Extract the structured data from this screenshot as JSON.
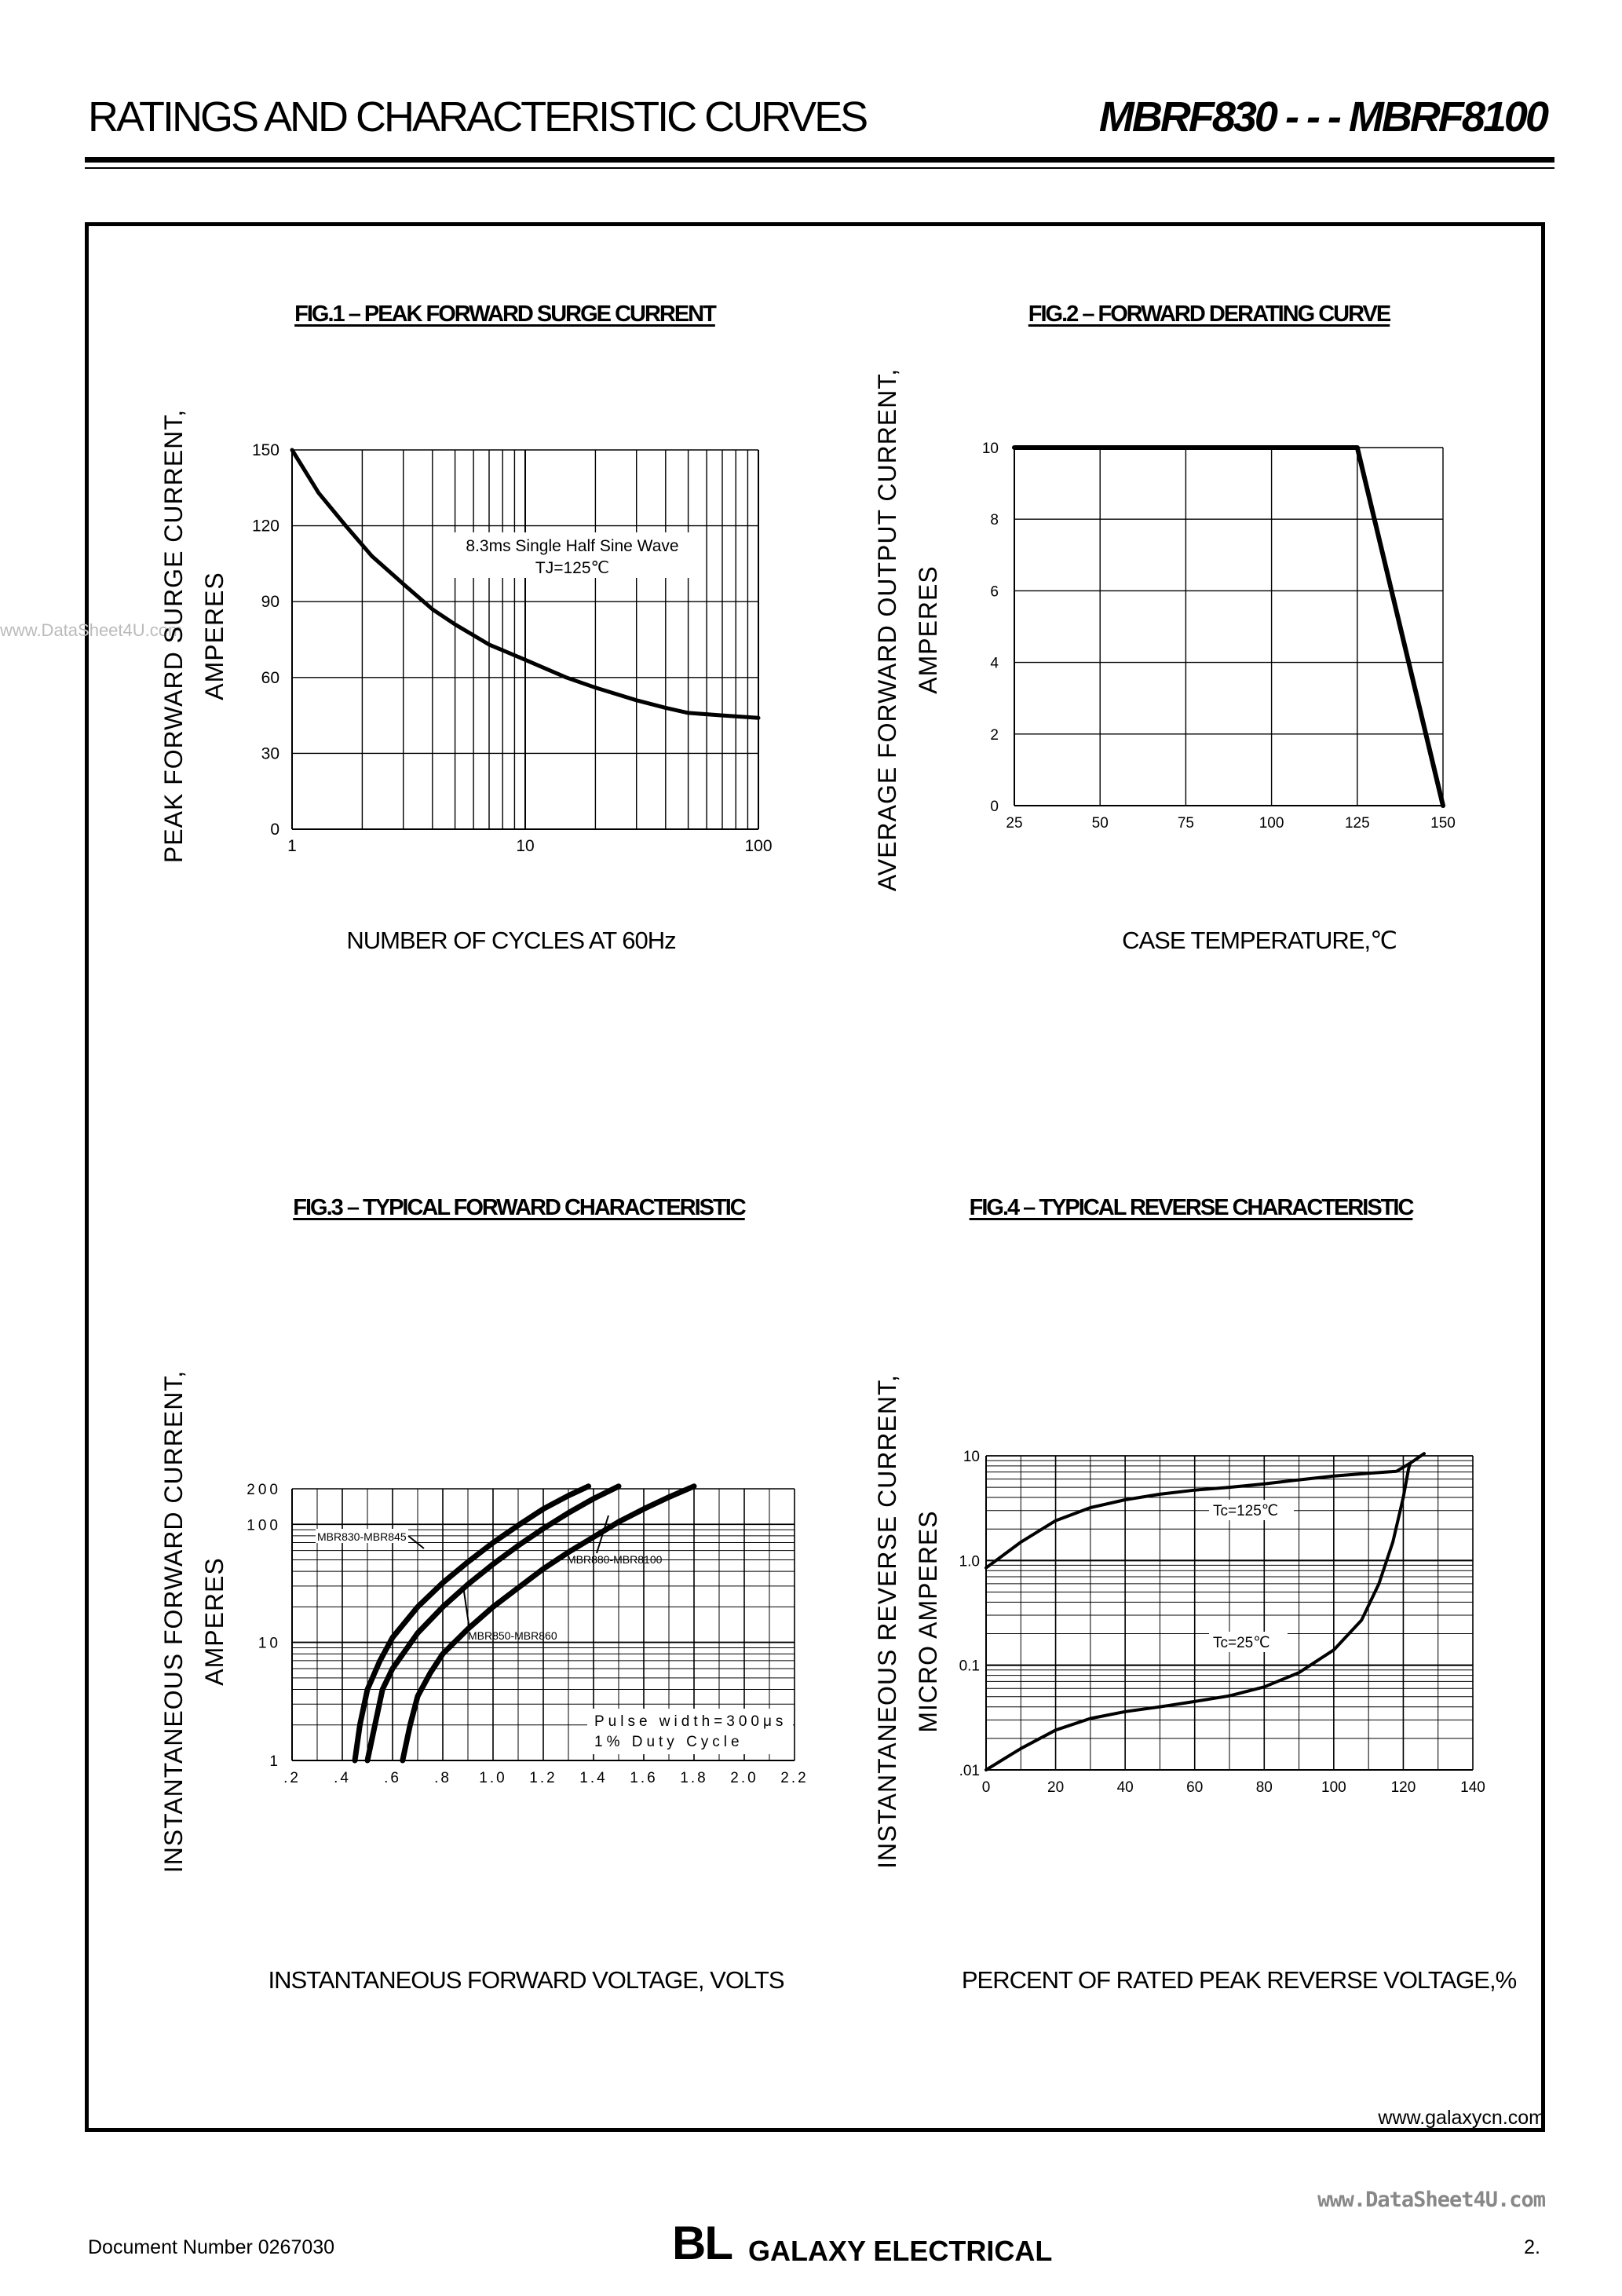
{
  "header": {
    "title": "RATINGS AND CHARACTERISTIC CURVES",
    "part_range": "MBRF830 - - - MBRF8100"
  },
  "footer": {
    "website": "www.galaxycn.com",
    "watermark": "www.DataSheet4U.com",
    "side_watermark": "www.DataSheet4U.com",
    "document_number": "Document  Number  0267030",
    "logo_bl": "BL",
    "logo_text": "GALAXY ELECTRICAL",
    "page_number": "2."
  },
  "colors": {
    "ink": "#000000",
    "grid": "#000000",
    "watermark": "#888888"
  },
  "chart_data": [
    {
      "type": "line",
      "title": "FIG.1 – PEAK FORWARD SURGE CURRENT",
      "xlabel": "NUMBER  OF  CYCLES AT 60Hz",
      "ylabel": [
        "PEAK FORWARD SURGE CURRENT,",
        "AMPERES"
      ],
      "x_scale": "log",
      "xlim": [
        1,
        100
      ],
      "ylim": [
        0,
        150
      ],
      "x_ticks": [
        "1",
        "10",
        "100"
      ],
      "y_ticks": [
        "150",
        "120",
        "90",
        "60",
        "30",
        "0"
      ],
      "grid": true,
      "annotation": [
        "8.3ms Single Half Sine Wave",
        "TJ=125℃"
      ],
      "series": [
        {
          "x": [
            1,
            1.3,
            1.7,
            2.2,
            3,
            4,
            5,
            7,
            10,
            15,
            20,
            30,
            40,
            50,
            70,
            100
          ],
          "y": [
            150,
            133,
            120,
            108,
            97,
            87,
            81,
            73,
            67,
            60,
            56,
            51,
            48,
            46,
            45,
            44
          ]
        }
      ]
    },
    {
      "type": "line",
      "title": "FIG.2 – FORWARD DERATING CURVE",
      "xlabel": "CASE TEMPERATURE,℃",
      "ylabel": [
        "AVERAGE FORWARD OUTPUT CURRENT,",
        "AMPERES"
      ],
      "xlim": [
        25,
        150
      ],
      "ylim": [
        0,
        10
      ],
      "x_ticks": [
        "25",
        "50",
        "75",
        "100",
        "125",
        "150"
      ],
      "y_ticks": [
        "10",
        "8",
        "6",
        "4",
        "2",
        "0"
      ],
      "grid": true,
      "series": [
        {
          "x": [
            25,
            125,
            150
          ],
          "y": [
            10,
            10,
            0
          ]
        }
      ]
    },
    {
      "type": "line",
      "title": "FIG.3 – TYPICAL FORWARD CHARACTERISTIC",
      "xlabel": "INSTANTANEOUS FORWARD VOLTAGE,  VOLTS",
      "ylabel": [
        "INSTANTANEOUS FORWARD CURRENT,",
        "AMPERES"
      ],
      "y_scale": "log",
      "xlim": [
        0.2,
        2.2
      ],
      "ylim": [
        1,
        200
      ],
      "x_ticks": [
        ".2",
        ".4",
        ".6",
        ".8",
        "1.0",
        "1.2",
        "1.4",
        "1.6",
        "1.8",
        "2.0",
        "2.2"
      ],
      "y_ticks": [
        "200",
        "100",
        "10",
        "1"
      ],
      "grid": true,
      "annotation": [
        "Pulse width=300μs",
        "1% Duty Cycle"
      ],
      "series": [
        {
          "name": "MBR830-MBR845",
          "x": [
            0.45,
            0.47,
            0.5,
            0.55,
            0.6,
            0.7,
            0.8,
            0.9,
            1.0,
            1.1,
            1.2,
            1.3,
            1.38
          ],
          "y": [
            1,
            2,
            4,
            7,
            11,
            20,
            32,
            48,
            70,
            98,
            135,
            175,
            210
          ]
        },
        {
          "name": "MBR850-MBR860",
          "x": [
            0.5,
            0.53,
            0.56,
            0.6,
            0.7,
            0.8,
            0.9,
            1.0,
            1.1,
            1.2,
            1.3,
            1.4,
            1.5
          ],
          "y": [
            1,
            2,
            4,
            6,
            12,
            20,
            31,
            46,
            66,
            92,
            125,
            165,
            210
          ]
        },
        {
          "name": "MBR880-MBR8100",
          "x": [
            0.64,
            0.67,
            0.7,
            0.75,
            0.8,
            0.9,
            1.0,
            1.1,
            1.2,
            1.3,
            1.4,
            1.5,
            1.6,
            1.7,
            1.8
          ],
          "y": [
            1,
            2,
            3.5,
            5.5,
            8,
            13,
            20,
            29,
            42,
            58,
            78,
            105,
            135,
            170,
            210
          ]
        }
      ]
    },
    {
      "type": "line",
      "title": "FIG.4 – TYPICAL REVERSE CHARACTERISTIC",
      "xlabel": "PERCENT OF RATED PEAK REVERSE VOLTAGE,%",
      "ylabel": [
        "INSTANTANEOUS REVERSE CURRENT,",
        "MICRO AMPERES"
      ],
      "y_scale": "log",
      "xlim": [
        0,
        140
      ],
      "ylim": [
        0.01,
        10
      ],
      "x_ticks": [
        "0",
        "20",
        "40",
        "60",
        "80",
        "100",
        "120",
        "140"
      ],
      "y_ticks": [
        "10",
        "1.0",
        "0.1",
        ".01"
      ],
      "grid": true,
      "series": [
        {
          "name": "Tc=125℃",
          "x": [
            0,
            10,
            20,
            30,
            40,
            50,
            60,
            70,
            80,
            90,
            100,
            110,
            118,
            122,
            126
          ],
          "y": [
            0.85,
            1.5,
            2.4,
            3.2,
            3.8,
            4.3,
            4.7,
            5.0,
            5.4,
            5.9,
            6.4,
            6.8,
            7.1,
            8.5,
            10.5
          ]
        },
        {
          "name": "Tc=25℃",
          "x": [
            0,
            10,
            20,
            30,
            40,
            50,
            60,
            70,
            80,
            90,
            100,
            108,
            113,
            117,
            120,
            121.5
          ],
          "y": [
            0.01,
            0.016,
            0.024,
            0.031,
            0.036,
            0.04,
            0.045,
            0.051,
            0.062,
            0.085,
            0.14,
            0.27,
            0.6,
            1.5,
            4.0,
            7.5
          ]
        }
      ]
    }
  ]
}
